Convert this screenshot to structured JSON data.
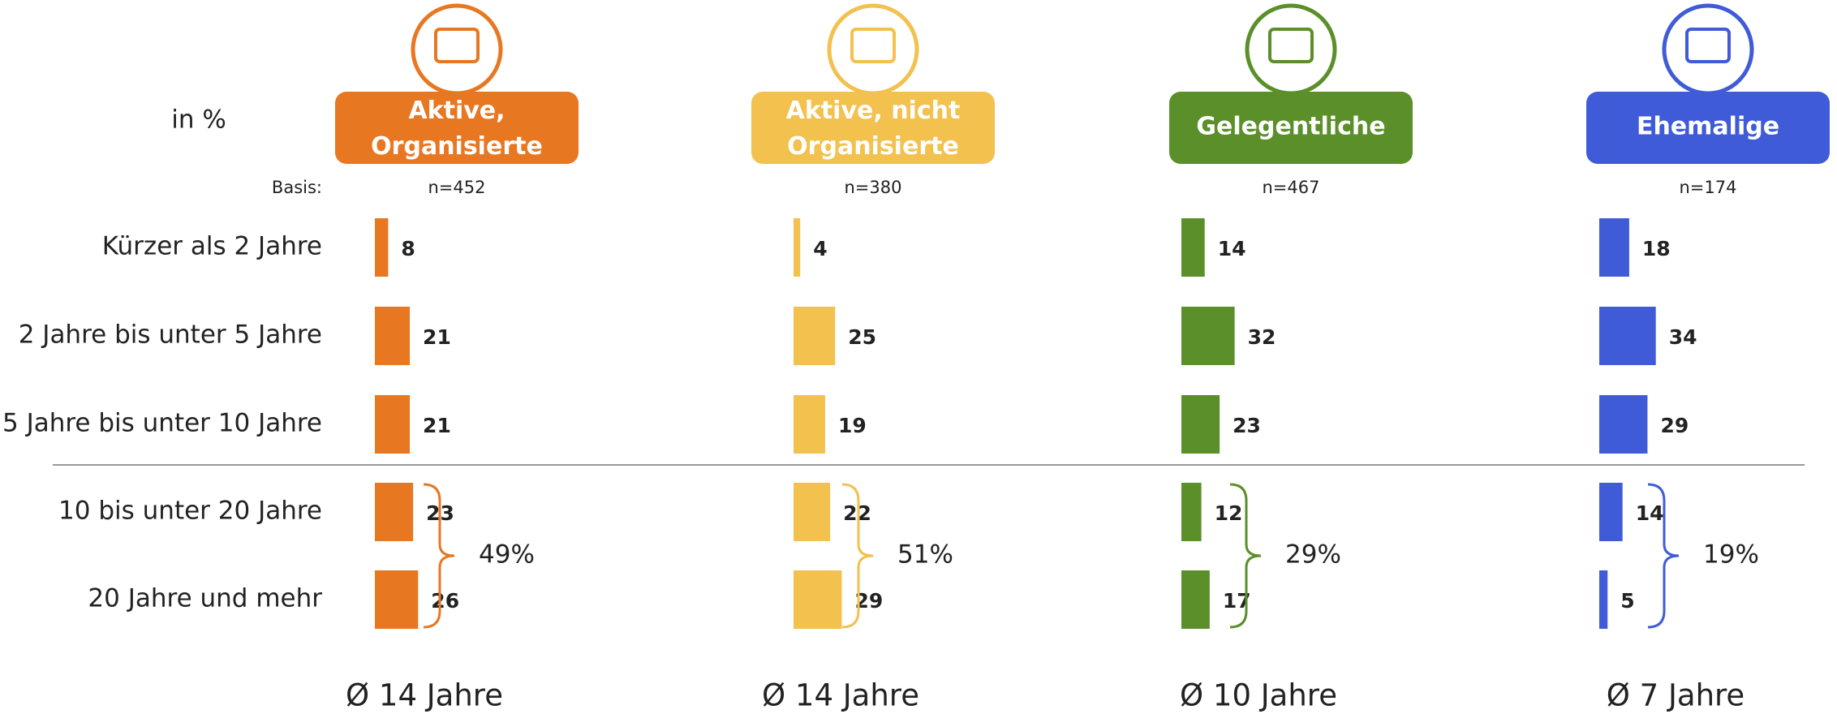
{
  "chart_data": {
    "type": "bar",
    "unit_label": "in %",
    "basis_label": "Basis:",
    "categories": [
      "Kürzer als 2 Jahre",
      "2 Jahre bis unter 5 Jahre",
      "5 Jahre bis unter 10 Jahre",
      "10 bis unter 20 Jahre",
      "20 Jahre und mehr"
    ],
    "series": [
      {
        "name": "Aktive, Organisierte",
        "color": "#e87722",
        "n": "n=452",
        "values": [
          8,
          21,
          21,
          23,
          26
        ],
        "bracket_label": "49%",
        "average": "Ø 14 Jahre"
      },
      {
        "name": "Aktive, nicht Organisierte",
        "color": "#f2c14e",
        "n": "n=380",
        "values": [
          4,
          25,
          19,
          22,
          29
        ],
        "bracket_label": "51%",
        "average": "Ø 14 Jahre"
      },
      {
        "name": "Gelegentliche",
        "color": "#5b8f29",
        "n": "n=467",
        "values": [
          14,
          32,
          23,
          12,
          17
        ],
        "bracket_label": "29%",
        "average": "Ø 10 Jahre"
      },
      {
        "name": "Ehemalige",
        "color": "#3f5bd8",
        "n": "n=174",
        "values": [
          18,
          34,
          29,
          14,
          5
        ],
        "bracket_label": "19%",
        "average": "Ø 7 Jahre"
      }
    ]
  }
}
